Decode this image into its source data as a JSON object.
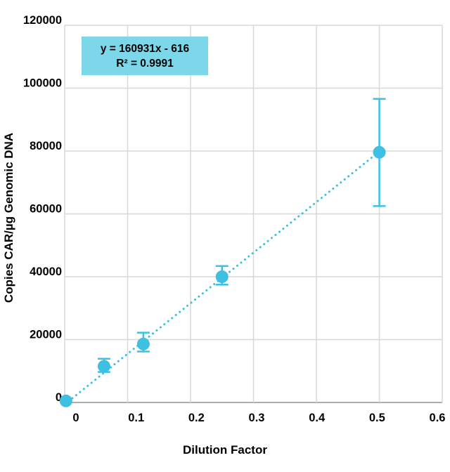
{
  "chart_data": {
    "type": "scatter",
    "title": "",
    "xlabel": "Dilution Factor",
    "ylabel": "Copies CAR/µg Genomic DNA",
    "xlim": [
      0,
      0.6
    ],
    "ylim": [
      0,
      120000
    ],
    "grid": true,
    "x_ticks": [
      {
        "value": 0,
        "label": "0"
      },
      {
        "value": 0.1,
        "label": "0.1"
      },
      {
        "value": 0.2,
        "label": "0.2"
      },
      {
        "value": 0.3,
        "label": "0.3"
      },
      {
        "value": 0.4,
        "label": "0.4"
      },
      {
        "value": 0.5,
        "label": "0.5"
      },
      {
        "value": 0.6,
        "label": "0.6"
      }
    ],
    "y_ticks": [
      {
        "value": 0,
        "label": "0"
      },
      {
        "value": 20000,
        "label": "20000"
      },
      {
        "value": 40000,
        "label": "40000"
      },
      {
        "value": 60000,
        "label": "60000"
      },
      {
        "value": 80000,
        "label": "80000"
      },
      {
        "value": 100000,
        "label": "100000"
      },
      {
        "value": 120000,
        "label": "120000"
      }
    ],
    "series": [
      {
        "name": "Copies CAR per µg genomic DNA",
        "points": [
          {
            "x": 0.002,
            "y": 500,
            "err_low": null,
            "err_high": null
          },
          {
            "x": 0.0625,
            "y": 11500,
            "err_low": 9700,
            "err_high": 13900
          },
          {
            "x": 0.125,
            "y": 18600,
            "err_low": 16200,
            "err_high": 22200
          },
          {
            "x": 0.25,
            "y": 40000,
            "err_low": 37500,
            "err_high": 43400
          },
          {
            "x": 0.5,
            "y": 79600,
            "err_low": 62500,
            "err_high": 96600
          }
        ]
      }
    ],
    "trendline": {
      "slope": 160931,
      "intercept": -616,
      "x_start": 0,
      "x_end": 0.5,
      "style": "dotted"
    },
    "annotation": {
      "equation": "y = 160931x - 616",
      "r_squared": "R² = 0.9991"
    },
    "legend": null,
    "colors": {
      "series": "#3EC0E2",
      "annotation_bg": "#7DD7EB",
      "gridline": "#D8D8D8",
      "axis_line": "#ADADAD",
      "text": "#000000"
    }
  }
}
